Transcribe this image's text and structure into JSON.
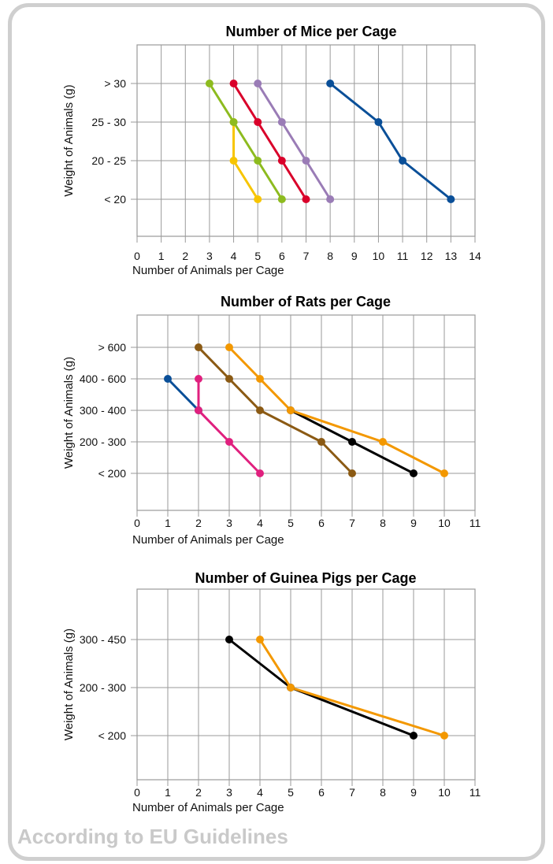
{
  "footer": "According to EU Guidelines",
  "chart_data": [
    {
      "type": "line",
      "title": "Number of Mice per Cage",
      "xlabel": "Number of Animals per Cage",
      "ylabel": "Weight of Animals (g)",
      "xlim": [
        0,
        14
      ],
      "xticks": [
        0,
        1,
        2,
        3,
        4,
        5,
        6,
        7,
        8,
        9,
        10,
        11,
        12,
        13,
        14
      ],
      "categories": [
        "> 30",
        "25 - 30",
        "20 - 25",
        "< 20"
      ],
      "grid": true,
      "series": [
        {
          "color": "#f7c500",
          "points": [
            [
              4,
              "25 - 30"
            ],
            [
              4,
              "20 - 25"
            ],
            [
              5,
              "< 20"
            ]
          ]
        },
        {
          "color": "#8dbb1f",
          "points": [
            [
              3,
              "> 30"
            ],
            [
              4,
              "25 - 30"
            ],
            [
              5,
              "20 - 25"
            ],
            [
              6,
              "< 20"
            ]
          ]
        },
        {
          "color": "#d9002a",
          "points": [
            [
              4,
              "> 30"
            ],
            [
              5,
              "25 - 30"
            ],
            [
              6,
              "20 - 25"
            ],
            [
              7,
              "< 20"
            ]
          ]
        },
        {
          "color": "#9a7cb6",
          "points": [
            [
              5,
              "> 30"
            ],
            [
              6,
              "25 - 30"
            ],
            [
              7,
              "20 - 25"
            ],
            [
              8,
              "< 20"
            ]
          ]
        },
        {
          "color": "#0a4f98",
          "points": [
            [
              8,
              "> 30"
            ],
            [
              10,
              "25 - 30"
            ],
            [
              11,
              "20 - 25"
            ],
            [
              13,
              "< 20"
            ]
          ]
        }
      ]
    },
    {
      "type": "line",
      "title": "Number of Rats per Cage",
      "xlabel": "Number of Animals per Cage",
      "ylabel": "Weight of Animals (g)",
      "xlim": [
        0,
        11
      ],
      "xticks": [
        0,
        1,
        2,
        3,
        4,
        5,
        6,
        7,
        8,
        9,
        10,
        11
      ],
      "categories": [
        "> 600",
        "400 - 600",
        "300 - 400",
        "200 - 300",
        "< 200"
      ],
      "grid": true,
      "series": [
        {
          "color": "#0a4f98",
          "points": [
            [
              1,
              "400 - 600"
            ],
            [
              2,
              "300 - 400"
            ]
          ]
        },
        {
          "color": "#e0207e",
          "points": [
            [
              2,
              "400 - 600"
            ],
            [
              2,
              "300 - 400"
            ],
            [
              3,
              "200 - 300"
            ],
            [
              4,
              "< 200"
            ]
          ]
        },
        {
          "color": "#8b5a14",
          "points": [
            [
              2,
              "> 600"
            ],
            [
              3,
              "400 - 600"
            ],
            [
              4,
              "300 - 400"
            ],
            [
              6,
              "200 - 300"
            ],
            [
              7,
              "< 200"
            ]
          ]
        },
        {
          "color": "#000000",
          "points": [
            [
              5,
              "300 - 400"
            ],
            [
              7,
              "200 - 300"
            ],
            [
              9,
              "< 200"
            ]
          ]
        },
        {
          "color": "#f39800",
          "points": [
            [
              3,
              "> 600"
            ],
            [
              4,
              "400 - 600"
            ],
            [
              5,
              "300 - 400"
            ],
            [
              8,
              "200 - 300"
            ],
            [
              10,
              "< 200"
            ]
          ]
        }
      ]
    },
    {
      "type": "line",
      "title": "Number of Guinea Pigs per Cage",
      "xlabel": "Number of Animals per Cage",
      "ylabel": "Weight of Animals (g)",
      "xlim": [
        0,
        11
      ],
      "xticks": [
        0,
        1,
        2,
        3,
        4,
        5,
        6,
        7,
        8,
        9,
        10,
        11
      ],
      "categories": [
        "300 - 450",
        "200 - 300",
        "< 200"
      ],
      "grid": true,
      "series": [
        {
          "color": "#000000",
          "points": [
            [
              3,
              "300 - 450"
            ],
            [
              5,
              "200 - 300"
            ],
            [
              9,
              "< 200"
            ]
          ]
        },
        {
          "color": "#f39800",
          "points": [
            [
              4,
              "300 - 450"
            ],
            [
              5,
              "200 - 300"
            ],
            [
              10,
              "< 200"
            ]
          ]
        }
      ]
    }
  ]
}
